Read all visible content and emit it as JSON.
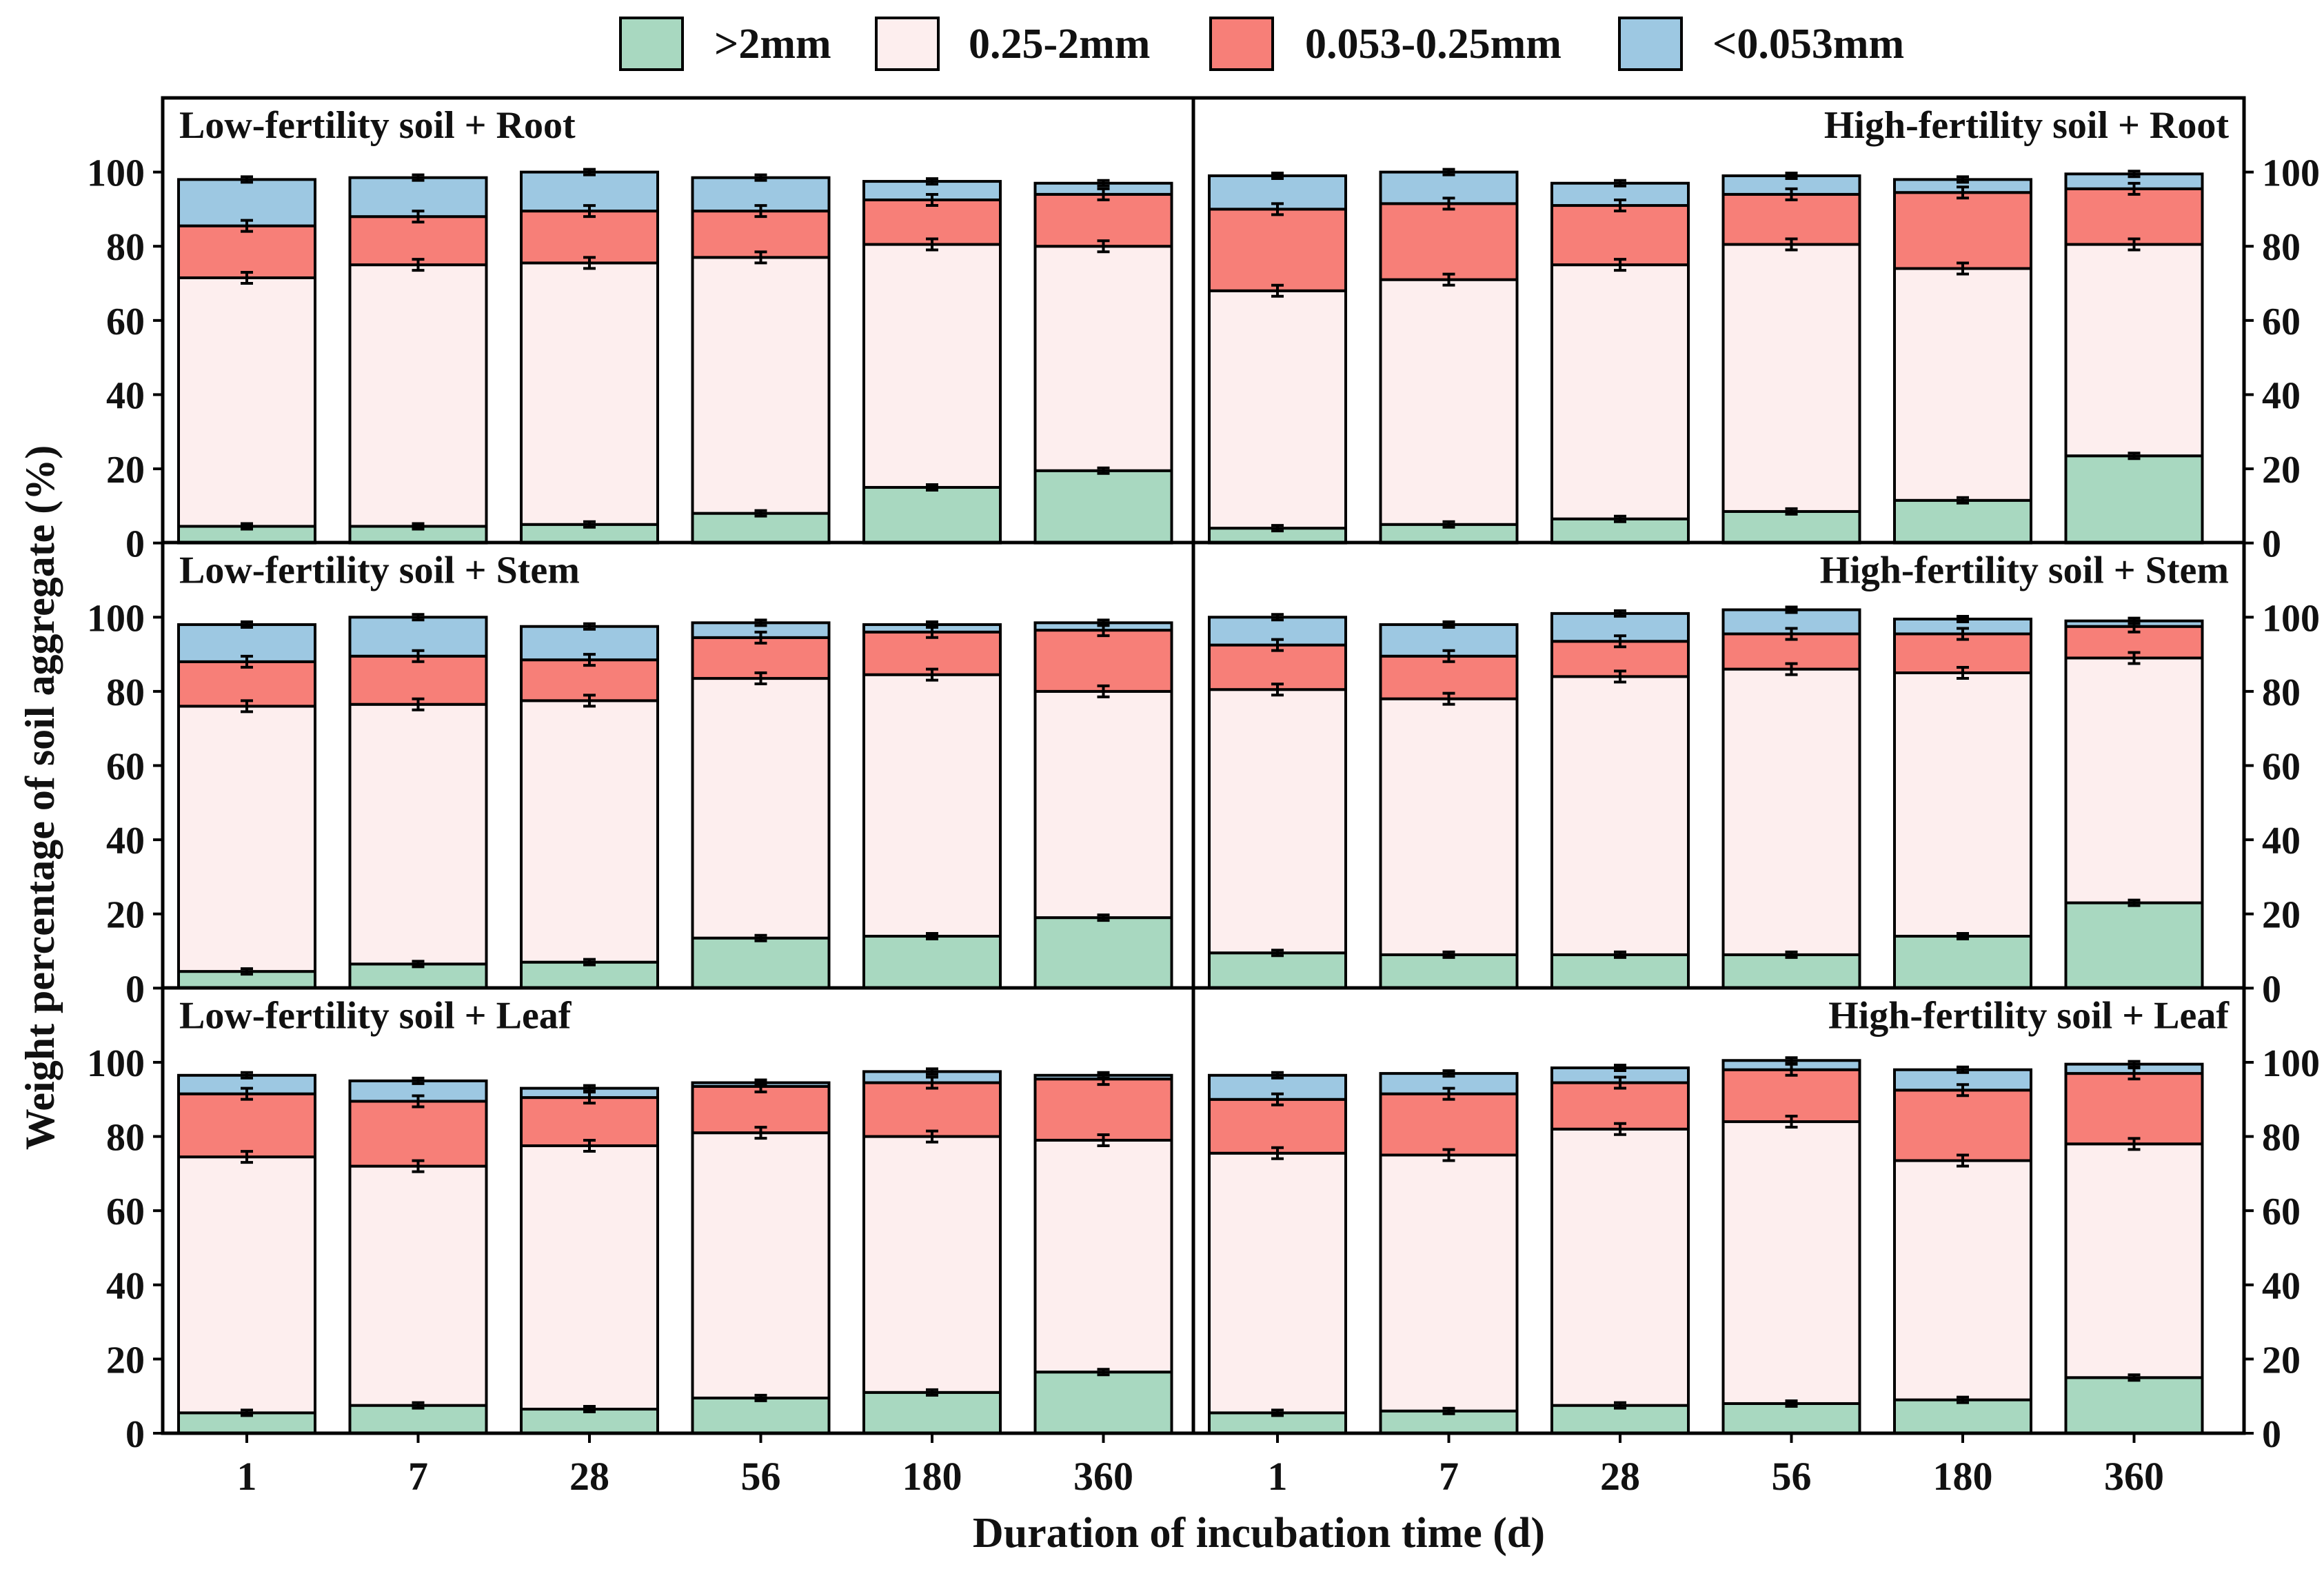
{
  "legend": [
    {
      "label": ">2mm",
      "color": "#a8d8c0"
    },
    {
      "label": "0.25-2mm",
      "color": "#fdeeee"
    },
    {
      "label": "0.053-0.25mm",
      "color": "#f77f78"
    },
    {
      "label": "<0.053mm",
      "color": "#9dc8e2"
    }
  ],
  "y_axis_label": "Weight percentage of soil aggregate (%)",
  "x_axis_label": "Duration of incubation time (d)",
  "chart_data": {
    "type": "bar",
    "stacked": true,
    "categories": [
      "1",
      "7",
      "28",
      "56",
      "180",
      "360"
    ],
    "ylim": [
      0,
      120
    ],
    "yticks": [
      0,
      20,
      40,
      60,
      80,
      100
    ],
    "series_names": [
      ">2mm",
      "0.25-2mm",
      "0.053-0.25mm",
      "<0.053mm"
    ],
    "panels": [
      {
        "title": "Low-fertility soil + Root",
        "column": "left",
        "row": 0,
        "cumulative": [
          [
            4.5,
            71.5,
            85.5,
            98
          ],
          [
            4.5,
            75,
            88,
            98.5
          ],
          [
            5,
            75.5,
            89.5,
            100
          ],
          [
            8,
            77,
            89.5,
            98.5
          ],
          [
            15,
            80.5,
            92.5,
            97.5
          ],
          [
            19.5,
            80,
            94,
            97
          ]
        ]
      },
      {
        "title": "High-fertility soil + Root",
        "column": "right",
        "row": 0,
        "cumulative": [
          [
            4,
            68,
            90,
            99
          ],
          [
            5,
            71,
            91.5,
            100
          ],
          [
            6.5,
            75,
            91,
            97
          ],
          [
            8.5,
            80.5,
            94,
            99
          ],
          [
            11.5,
            74,
            94.5,
            98
          ],
          [
            23.5,
            80.5,
            95.5,
            99.5
          ]
        ]
      },
      {
        "title": "Low-fertility soil + Stem",
        "column": "left",
        "row": 1,
        "cumulative": [
          [
            4.5,
            76,
            88,
            98
          ],
          [
            6.5,
            76.5,
            89.5,
            100
          ],
          [
            7,
            77.5,
            88.5,
            97.5
          ],
          [
            13.5,
            83.5,
            94.5,
            98.5
          ],
          [
            14,
            84.5,
            96,
            98
          ],
          [
            19,
            80,
            96.5,
            98.5
          ]
        ]
      },
      {
        "title": "High-fertility soil + Stem",
        "column": "right",
        "row": 1,
        "cumulative": [
          [
            9.5,
            80.5,
            92.5,
            100
          ],
          [
            9,
            78,
            89.5,
            98
          ],
          [
            9,
            84,
            93.5,
            101
          ],
          [
            9,
            86,
            95.5,
            102
          ],
          [
            14,
            85,
            95.5,
            99.5
          ],
          [
            23,
            89,
            97.5,
            99
          ]
        ]
      },
      {
        "title": "Low-fertility soil + Leaf",
        "column": "left",
        "row": 2,
        "cumulative": [
          [
            5.5,
            74.5,
            91.5,
            96.5
          ],
          [
            7.5,
            72,
            89.5,
            95
          ],
          [
            6.5,
            77.5,
            90.5,
            93
          ],
          [
            9.5,
            81,
            93.5,
            94.5
          ],
          [
            11,
            80,
            94.5,
            97.5
          ],
          [
            16.5,
            79,
            95.5,
            96.5
          ]
        ]
      },
      {
        "title": "High-fertility soil + Leaf",
        "column": "right",
        "row": 2,
        "cumulative": [
          [
            5.5,
            75.5,
            90,
            96.5
          ],
          [
            6,
            75,
            91.5,
            97
          ],
          [
            7.5,
            82,
            94.5,
            98.5
          ],
          [
            8,
            84,
            98,
            100.5
          ],
          [
            9,
            73.5,
            92.5,
            98
          ],
          [
            15,
            78,
            97,
            99.5
          ]
        ]
      }
    ]
  }
}
